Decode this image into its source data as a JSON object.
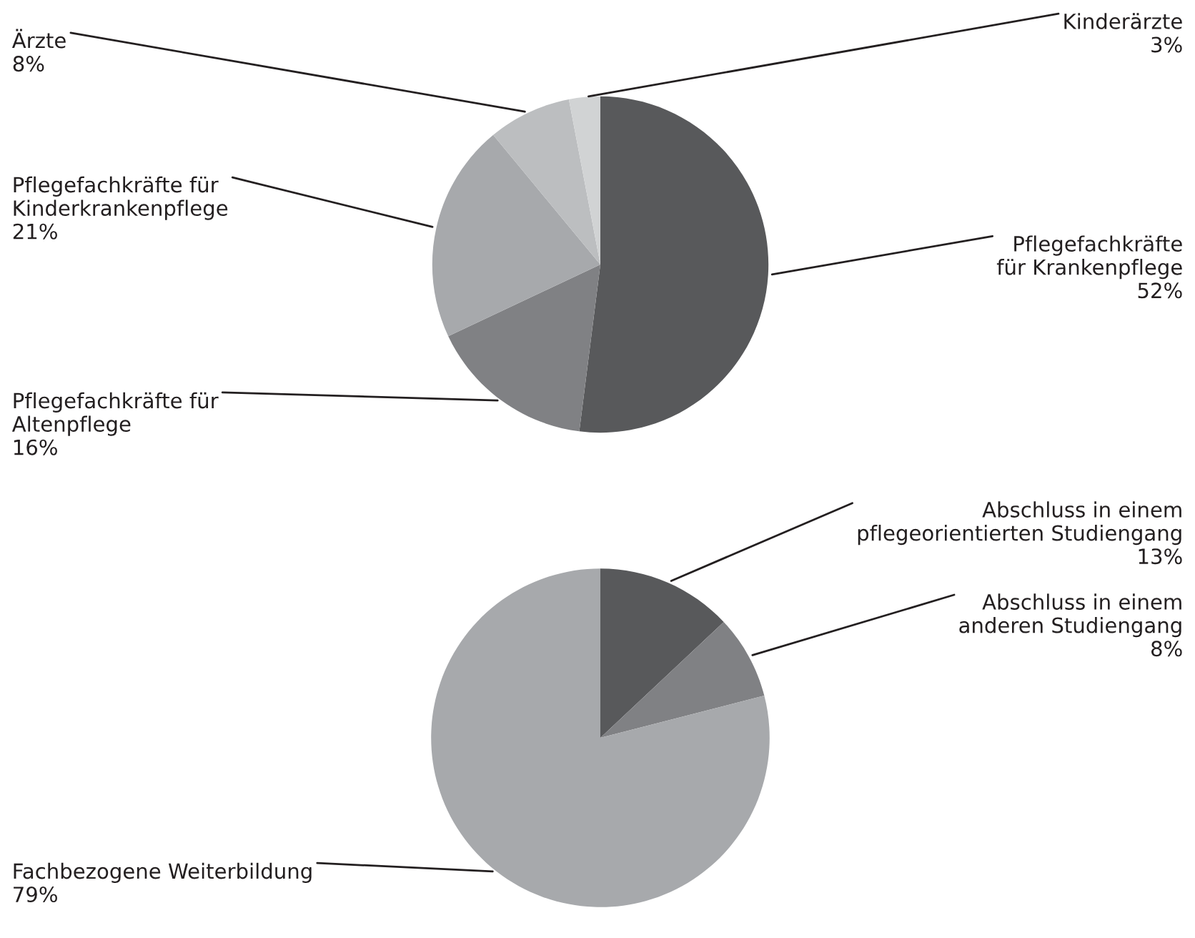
{
  "chart_data": [
    {
      "type": "pie",
      "categories": [
        "Pflegefachkräfte\nfür Krankenpflege",
        "Pflegefachkräfte für\nAltenpflege",
        "Pflegefachkräfte für\nKinderkrankenpflege",
        "Ärzte",
        "Kinderärzte"
      ],
      "values": [
        52,
        16,
        21,
        8,
        3
      ],
      "value_labels": [
        "52%",
        "16%",
        "21%",
        "8%",
        "3%"
      ],
      "colors": [
        "#58595b",
        "#808184",
        "#a7a9ac",
        "#bcbec0",
        "#d1d3d4"
      ]
    },
    {
      "type": "pie",
      "categories": [
        "Abschluss in einem\npflegeorientierten Studiengang",
        "Abschluss in einem\nanderen Studiengang",
        "Fachbezogene Weiterbildung"
      ],
      "values": [
        13,
        8,
        79
      ],
      "value_labels": [
        "13%",
        "8%",
        "79%"
      ],
      "colors": [
        "#58595b",
        "#808184",
        "#a7a9ac"
      ]
    }
  ]
}
